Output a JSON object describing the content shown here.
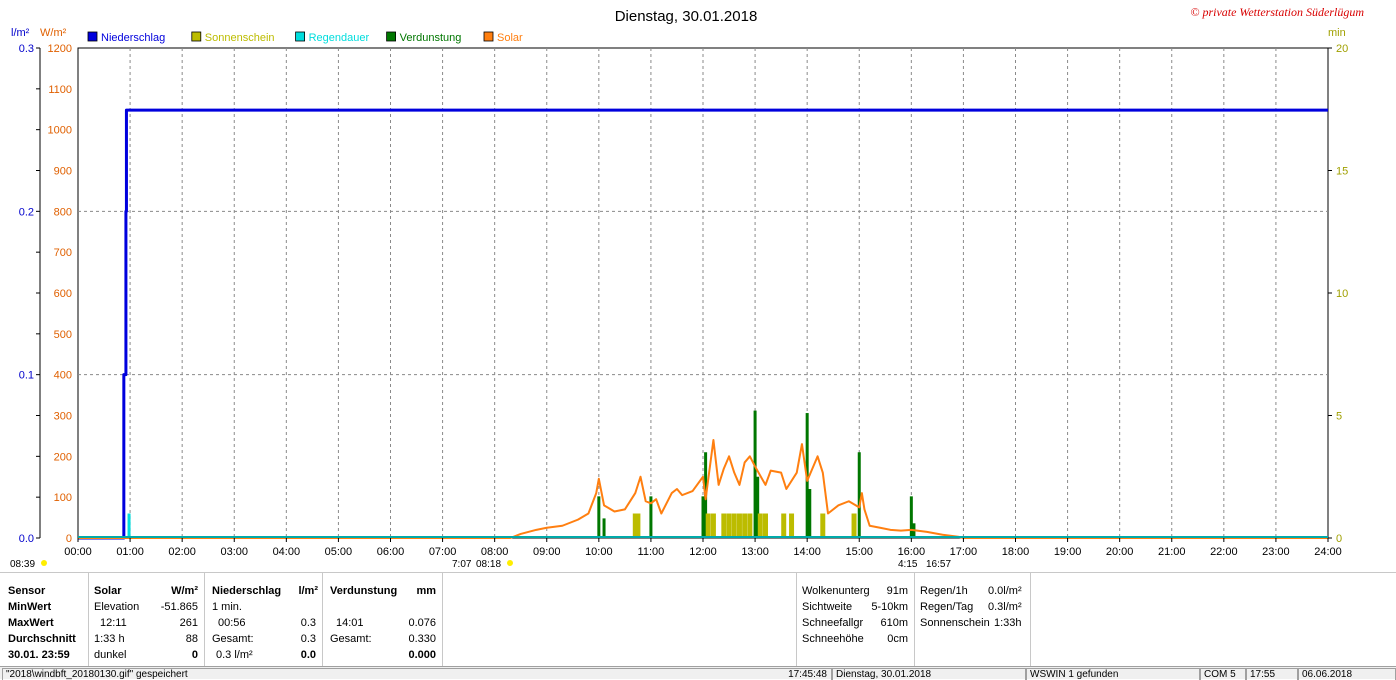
{
  "chart_data": {
    "type": "line",
    "title": "Dienstag, 30.01.2018",
    "watermark": "© private Wetterstation Süderlügum",
    "x_ticks": [
      "00:00",
      "01:00",
      "02:00",
      "03:00",
      "04:00",
      "05:00",
      "06:00",
      "07:00",
      "08:00",
      "09:00",
      "10:00",
      "11:00",
      "12:00",
      "13:00",
      "14:00",
      "15:00",
      "16:00",
      "17:00",
      "18:00",
      "19:00",
      "20:00",
      "21:00",
      "22:00",
      "23:00",
      "24:00"
    ],
    "xlim_hours": [
      0,
      24
    ],
    "left_axis_1": {
      "unit": "l/m²",
      "ticks": [
        "0.3",
        "0.2",
        "0.1",
        "0.0"
      ],
      "ylim": [
        0,
        0.3
      ],
      "color": "#0000cc"
    },
    "left_axis_2": {
      "unit": "W/m²",
      "ticks": [
        "1200",
        "1100",
        "1000",
        "900",
        "800",
        "700",
        "600",
        "500",
        "400",
        "300",
        "200",
        "100",
        "0"
      ],
      "ylim": [
        0,
        1200
      ],
      "color": "#e06000"
    },
    "right_axis": {
      "unit": "min",
      "ticks": [
        "20",
        "15",
        "10",
        "5",
        "0"
      ],
      "ylim": [
        0,
        20
      ],
      "color": "#a0a000"
    },
    "grid": true,
    "legend": [
      {
        "name": "Niederschlag",
        "color": "#0000dd"
      },
      {
        "name": "Sonnenschein",
        "color": "#bcbc00"
      },
      {
        "name": "Regendauer",
        "color": "#00dddd"
      },
      {
        "name": "Verdunstung",
        "color": "#007700"
      },
      {
        "name": "Solar",
        "color": "#ff7f10"
      }
    ],
    "series": [
      {
        "name": "Niederschlag",
        "axis": "l/m²",
        "step": true,
        "points": [
          [
            0,
            0
          ],
          [
            0.87,
            0
          ],
          [
            0.88,
            0.1
          ],
          [
            0.92,
            0.2
          ],
          [
            0.93,
            0.262
          ],
          [
            24,
            0.262
          ]
        ]
      },
      {
        "name": "Solar",
        "axis": "W/m²",
        "points": [
          [
            0,
            0
          ],
          [
            8.3,
            0
          ],
          [
            8.5,
            10
          ],
          [
            8.8,
            20
          ],
          [
            9.0,
            25
          ],
          [
            9.3,
            30
          ],
          [
            9.6,
            45
          ],
          [
            9.8,
            60
          ],
          [
            9.95,
            110
          ],
          [
            10.0,
            145
          ],
          [
            10.1,
            80
          ],
          [
            10.3,
            65
          ],
          [
            10.5,
            70
          ],
          [
            10.7,
            110
          ],
          [
            10.8,
            150
          ],
          [
            10.9,
            90
          ],
          [
            11.0,
            85
          ],
          [
            11.1,
            95
          ],
          [
            11.2,
            60
          ],
          [
            11.4,
            110
          ],
          [
            11.5,
            120
          ],
          [
            11.6,
            105
          ],
          [
            11.8,
            115
          ],
          [
            12.0,
            150
          ],
          [
            12.05,
            95
          ],
          [
            12.2,
            240
          ],
          [
            12.3,
            130
          ],
          [
            12.4,
            170
          ],
          [
            12.5,
            200
          ],
          [
            12.6,
            160
          ],
          [
            12.7,
            130
          ],
          [
            12.8,
            185
          ],
          [
            12.9,
            200
          ],
          [
            13.0,
            175
          ],
          [
            13.2,
            130
          ],
          [
            13.3,
            165
          ],
          [
            13.5,
            160
          ],
          [
            13.6,
            120
          ],
          [
            13.8,
            160
          ],
          [
            13.9,
            230
          ],
          [
            14.0,
            140
          ],
          [
            14.1,
            170
          ],
          [
            14.2,
            200
          ],
          [
            14.3,
            160
          ],
          [
            14.4,
            60
          ],
          [
            14.6,
            80
          ],
          [
            14.8,
            90
          ],
          [
            15.0,
            75
          ],
          [
            15.05,
            110
          ],
          [
            15.1,
            70
          ],
          [
            15.2,
            30
          ],
          [
            15.4,
            25
          ],
          [
            15.6,
            20
          ],
          [
            15.8,
            18
          ],
          [
            16.0,
            20
          ],
          [
            16.3,
            15
          ],
          [
            16.6,
            8
          ],
          [
            16.9,
            3
          ],
          [
            17.0,
            0
          ],
          [
            24,
            0
          ]
        ]
      },
      {
        "name": "Verdunstung",
        "axis": "min",
        "type": "bar",
        "bars": [
          [
            10.0,
            1.7
          ],
          [
            10.1,
            0.8
          ],
          [
            11.0,
            1.7
          ],
          [
            12.0,
            1.7
          ],
          [
            12.05,
            3.5
          ],
          [
            13.0,
            5.2
          ],
          [
            13.05,
            2.5
          ],
          [
            14.0,
            5.1
          ],
          [
            14.05,
            2.0
          ],
          [
            15.0,
            3.5
          ],
          [
            16.0,
            1.7
          ],
          [
            16.05,
            0.6
          ]
        ]
      },
      {
        "name": "Sonnenschein",
        "axis": "min",
        "type": "bar",
        "bars": [
          [
            10.7,
            1.0
          ],
          [
            10.75,
            1.0
          ],
          [
            12.1,
            1.0
          ],
          [
            12.2,
            1.0
          ],
          [
            12.4,
            1.0
          ],
          [
            12.5,
            1.0
          ],
          [
            12.6,
            1.0
          ],
          [
            12.7,
            1.0
          ],
          [
            12.8,
            1.0
          ],
          [
            12.9,
            1.0
          ],
          [
            13.1,
            1.0
          ],
          [
            13.2,
            1.0
          ],
          [
            13.55,
            1.0
          ],
          [
            13.7,
            1.0
          ],
          [
            14.3,
            1.0
          ],
          [
            14.9,
            1.0
          ]
        ]
      },
      {
        "name": "Regendauer",
        "axis": "min",
        "type": "bar",
        "bars": [
          [
            0.98,
            1.0
          ]
        ]
      }
    ],
    "sun_markers": {
      "sunrise": "08:18",
      "sunset": "16:57",
      "moon_set": "08:39",
      "extra_left": "7:07",
      "extra_right": "4:15"
    }
  },
  "panel": {
    "sensor": {
      "header": "Sensor",
      "rows": [
        "MinWert",
        "MaxWert",
        "Durchschnitt",
        "30.01. 23:59"
      ]
    },
    "solar": {
      "header": "Solar",
      "unit": "W/m²",
      "rows": [
        [
          "Elevation",
          "-51.865"
        ],
        [
          "12:11",
          "261"
        ],
        [
          "1:33 h",
          "88"
        ],
        [
          "dunkel",
          "0"
        ]
      ]
    },
    "niederschlag": {
      "header": "Niederschlag",
      "unit": "l/m²",
      "rows": [
        [
          "1 min.",
          ""
        ],
        [
          "00:56",
          "0.3"
        ],
        [
          "Gesamt:",
          "0.3"
        ],
        [
          "0.3 l/m²",
          "0.0"
        ]
      ]
    },
    "verdunstung": {
      "header": "Verdunstung",
      "unit": "mm",
      "rows": [
        [
          "",
          ""
        ],
        [
          "14:01",
          "0.076"
        ],
        [
          "Gesamt:",
          "0.330"
        ],
        [
          "",
          "0.000"
        ]
      ]
    },
    "wolken": {
      "rows": [
        [
          "Wolkenunterg",
          "91m"
        ],
        [
          "Sichtweite",
          "5-10km"
        ],
        [
          "Schneefallgr",
          "610m"
        ],
        [
          "Schneehöhe",
          "0cm"
        ]
      ]
    },
    "regen": {
      "rows": [
        [
          "Regen/1h",
          "0.0l/m²"
        ],
        [
          "Regen/Tag",
          "0.3l/m²"
        ],
        [
          "Sonnenschein",
          "1:33h"
        ]
      ]
    }
  },
  "status": {
    "file": "\"2018\\windbft_20180130.gif\" gespeichert",
    "time": "17:45:48",
    "date": "Dienstag, 30.01.2018",
    "wswin": "WSWIN 1 gefunden",
    "com": "COM 5",
    "clock": "17:55",
    "today": "06.06.2018"
  }
}
